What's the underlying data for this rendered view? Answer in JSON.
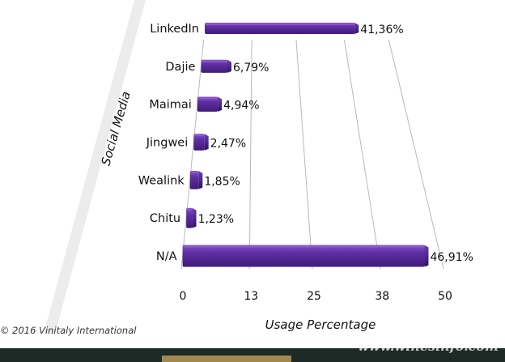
{
  "chart_data": {
    "type": "bar",
    "orientation": "horizontal",
    "categories": [
      "LinkedIn",
      "Dajie",
      "Maimai",
      "Jingwei",
      "Wealink",
      "Chitu",
      "N/A"
    ],
    "values": [
      41.36,
      6.79,
      4.94,
      2.47,
      1.85,
      1.23,
      46.91
    ],
    "value_labels": [
      "41,36%",
      "6,79%",
      "4,94%",
      "2,47%",
      "1,85%",
      "1,23%",
      "46,91%"
    ],
    "title": "",
    "xlabel": "Usage Percentage",
    "ylabel": "Social Media",
    "xticks": [
      0,
      13,
      25,
      38,
      50
    ],
    "xlim": [
      0,
      50
    ],
    "grid": true,
    "bar_color": "#5c2c9c"
  },
  "copyright": "© 2016 Vinitaly International",
  "watermark": "www.winesinfo.com"
}
